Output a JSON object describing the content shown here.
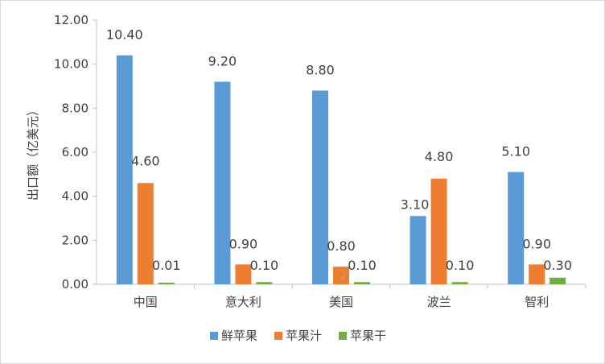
{
  "chart_data": {
    "type": "bar",
    "categories": [
      "中国",
      "意大利",
      "美国",
      "波兰",
      "智利"
    ],
    "series": [
      {
        "name": "鲜苹果",
        "values": [
          10.4,
          9.2,
          8.8,
          3.1,
          5.1
        ],
        "color": "#5b9bd5"
      },
      {
        "name": "苹果汁",
        "values": [
          4.6,
          0.9,
          0.8,
          4.8,
          0.9
        ],
        "color": "#ed7d31"
      },
      {
        "name": "苹果干",
        "values": [
          0.01,
          0.1,
          0.1,
          0.1,
          0.3
        ],
        "color": "#70ad47"
      }
    ],
    "data_labels": [
      [
        "10.40",
        "9.20",
        "8.80",
        "3.10",
        "5.10"
      ],
      [
        "4.60",
        "0.90",
        "0.80",
        "4.80",
        "0.90"
      ],
      [
        "0.01",
        "0.10",
        "0.10",
        "0.10",
        "0.30"
      ]
    ],
    "ylabel": "出口额（亿美元）",
    "ylim": [
      0,
      12
    ],
    "yticks": [
      "0.00",
      "2.00",
      "4.00",
      "6.00",
      "8.00",
      "10.00",
      "12.00"
    ],
    "grid": false,
    "legend_position": "bottom"
  }
}
